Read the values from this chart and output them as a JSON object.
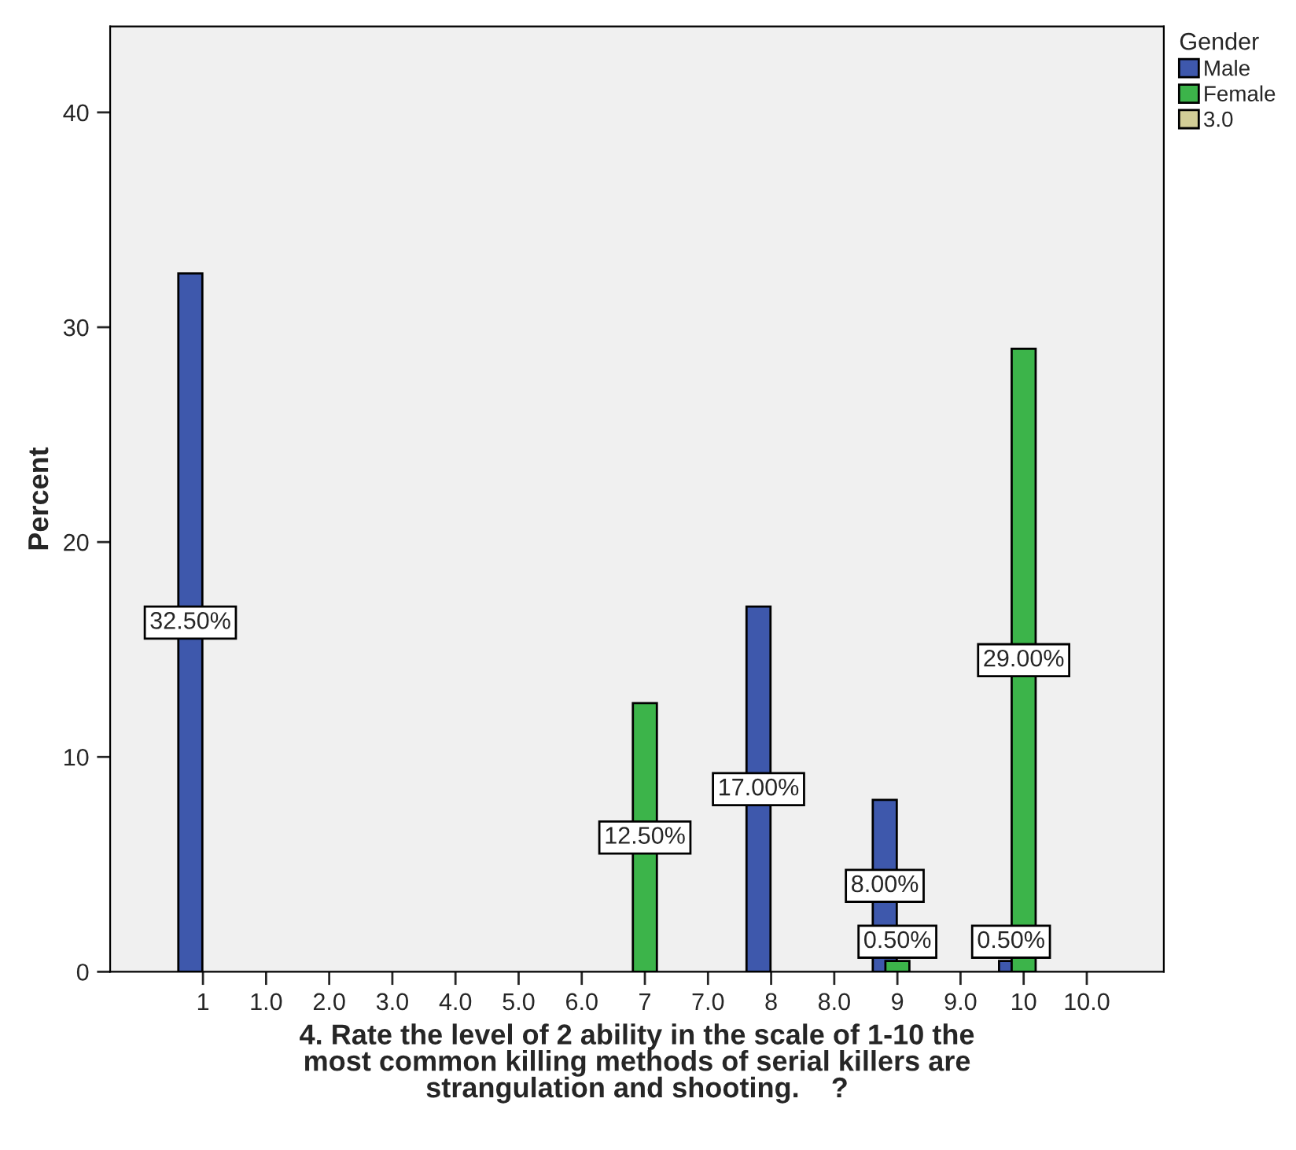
{
  "chart_data": {
    "type": "bar",
    "categories": [
      "1",
      "1.0",
      "2.0",
      "3.0",
      "4.0",
      "5.0",
      "6.0",
      "7",
      "7.0",
      "8",
      "8.0",
      "9",
      "9.0",
      "10",
      "10.0"
    ],
    "series": [
      {
        "name": "Male",
        "color": "#3e58ac",
        "values": [
          32.5,
          null,
          null,
          null,
          null,
          null,
          null,
          null,
          null,
          17,
          null,
          8,
          null,
          0.5,
          null
        ],
        "value_labels": [
          "32.50%",
          null,
          null,
          null,
          null,
          null,
          null,
          null,
          null,
          "17.00%",
          null,
          "8.00%",
          null,
          "0.50%",
          null
        ]
      },
      {
        "name": "Female",
        "color": "#3cb44a",
        "values": [
          null,
          null,
          null,
          null,
          null,
          null,
          null,
          12.5,
          null,
          null,
          null,
          0.5,
          null,
          29,
          null
        ],
        "value_labels": [
          null,
          null,
          null,
          null,
          null,
          null,
          null,
          "12.50%",
          null,
          null,
          null,
          "0.50%",
          null,
          "29.00%",
          null
        ]
      },
      {
        "name": "3.0",
        "color": "#d3ce97",
        "values": [
          null,
          null,
          null,
          null,
          null,
          null,
          null,
          null,
          null,
          null,
          null,
          null,
          null,
          null,
          null
        ]
      }
    ],
    "ylabel": "Percent",
    "xlabel": "4. Rate the level of 2 ability in the scale of 1-10 the\nmost common killing methods of serial killers are\nstrangulation and shooting.    ?",
    "legend_title": "Gender",
    "legend": "top right",
    "ylim": [
      0,
      44
    ],
    "yticks": [
      0,
      10,
      20,
      30,
      40
    ],
    "grid": false
  }
}
